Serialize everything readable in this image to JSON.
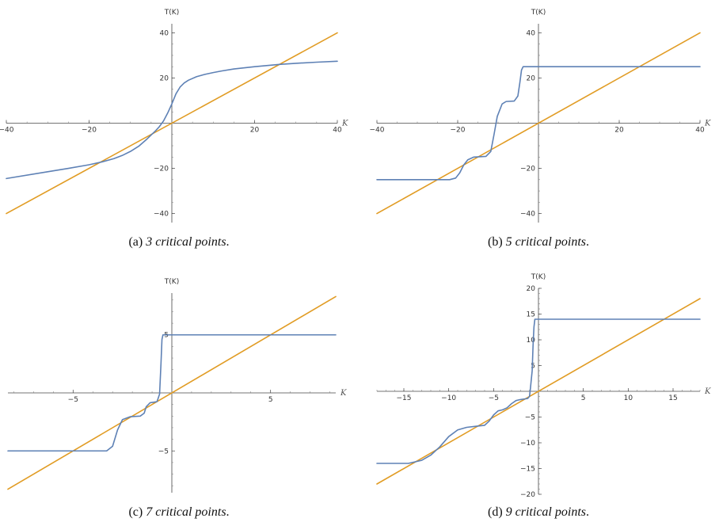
{
  "chart_data": [
    {
      "type": "line",
      "caption_label": "(a)",
      "caption_text": "3 critical points",
      "caption_end": ".",
      "xlabel": "K",
      "ylabel": "T(K)",
      "xlim": [
        -40,
        40
      ],
      "ylim": [
        -44,
        44
      ],
      "x_ticks": [
        -40,
        -20,
        20,
        40
      ],
      "y_ticks": [
        -40,
        -20,
        20,
        40
      ],
      "x_tick_labels": [
        "−40",
        "−20",
        "20",
        "40"
      ],
      "y_tick_labels": [
        "−40",
        "−20",
        "20",
        "40"
      ],
      "series": [
        {
          "color": "#5e81b5",
          "x": [
            -40,
            -30,
            -25,
            -20,
            -17,
            -14,
            -12,
            -10,
            -8,
            -6,
            -4,
            -3,
            -2,
            -1,
            0,
            1,
            2,
            3,
            4,
            6,
            8,
            10,
            12,
            15,
            20,
            26,
            30,
            35,
            40
          ],
          "y": [
            -24.5,
            -21.5,
            -20,
            -18.4,
            -17.2,
            -15.7,
            -14.3,
            -12.5,
            -10.2,
            -7,
            -3.5,
            -1.5,
            1,
            4.5,
            8.5,
            13,
            16,
            17.8,
            19,
            20.6,
            21.6,
            22.4,
            23.1,
            24,
            25,
            26,
            26.5,
            27,
            27.4
          ]
        },
        {
          "color": "#e19c24",
          "x": [
            -40,
            40
          ],
          "y": [
            -40,
            40
          ]
        }
      ]
    },
    {
      "type": "line",
      "caption_label": "(b)",
      "caption_text": "5 critical points",
      "caption_end": ".",
      "xlabel": "K",
      "ylabel": "T(K)",
      "xlim": [
        -40,
        40
      ],
      "ylim": [
        -44,
        44
      ],
      "x_ticks": [
        -40,
        -20,
        20,
        40
      ],
      "y_ticks": [
        -40,
        -20,
        20,
        40
      ],
      "x_tick_labels": [
        "−40",
        "−20",
        "20",
        "40"
      ],
      "y_tick_labels": [
        "−40",
        "−20",
        "20",
        "40"
      ],
      "series": [
        {
          "color": "#5e81b5",
          "x": [
            -40,
            -22,
            -20.5,
            -19.5,
            -18.5,
            -17.5,
            -16,
            -13,
            -11.8,
            -11,
            -10.2,
            -9,
            -8,
            -6,
            -5.1,
            -4.6,
            -4.2,
            -3.8,
            40
          ],
          "y": [
            -25,
            -25,
            -24.3,
            -22,
            -18.5,
            -16.2,
            -15,
            -14.7,
            -12.5,
            -5,
            3,
            8.5,
            9.6,
            9.8,
            12,
            18,
            23.5,
            25,
            25
          ]
        },
        {
          "color": "#e19c24",
          "x": [
            -40,
            40
          ],
          "y": [
            -40,
            40
          ]
        }
      ]
    },
    {
      "type": "line",
      "caption_label": "(c)",
      "caption_text": "7 critical points",
      "caption_end": ".",
      "xlabel": "K",
      "ylabel": "T(K)",
      "xlim": [
        -8.3,
        8.3
      ],
      "ylim": [
        -8.6,
        8.6
      ],
      "x_ticks": [
        -5,
        5
      ],
      "y_ticks": [
        -5,
        5
      ],
      "x_tick_labels": [
        "−5",
        "5"
      ],
      "y_tick_labels": [
        "−5",
        "5"
      ],
      "series": [
        {
          "color": "#5e81b5",
          "x": [
            -8.3,
            -3.3,
            -3.0,
            -2.75,
            -2.5,
            -2.1,
            -1.6,
            -1.4,
            -1.3,
            -1.1,
            -0.9,
            -0.75,
            -0.62,
            -0.55,
            -0.5,
            -0.45,
            8.3
          ],
          "y": [
            -5,
            -5,
            -4.6,
            -3.2,
            -2.3,
            -2.05,
            -2.0,
            -1.75,
            -1.2,
            -0.85,
            -0.8,
            -0.75,
            -0.1,
            2.5,
            4.6,
            5,
            5
          ]
        },
        {
          "color": "#e19c24",
          "x": [
            -8.3,
            8.3
          ],
          "y": [
            -8.3,
            8.3
          ]
        }
      ]
    },
    {
      "type": "line",
      "caption_label": "(d)",
      "caption_text": "9 critical points",
      "caption_end": ".",
      "xlabel": "K",
      "ylabel": "T(K)",
      "xlim": [
        -18,
        18
      ],
      "ylim": [
        -20,
        20
      ],
      "x_ticks": [
        -15,
        -10,
        -5,
        5,
        10,
        15
      ],
      "y_ticks": [
        -20,
        -15,
        -10,
        -5,
        5,
        10,
        15,
        20
      ],
      "x_tick_labels": [
        "−15",
        "−10",
        "−5",
        "5",
        "10",
        "15"
      ],
      "y_tick_labels": [
        "−20",
        "−15",
        "−10",
        "−5",
        "5",
        "10",
        "15",
        "20"
      ],
      "series": [
        {
          "color": "#5e81b5",
          "x": [
            -18,
            -14.5,
            -13,
            -12,
            -11,
            -10,
            -9,
            -8,
            -7,
            -6,
            -5.5,
            -5,
            -4.5,
            -4,
            -3.5,
            -3,
            -2.5,
            -2,
            -1.6,
            -1.2,
            -1.0,
            -0.9,
            -0.7,
            -0.6,
            -0.5,
            -0.4,
            18
          ],
          "y": [
            -14,
            -14,
            -13.4,
            -12.4,
            -10.8,
            -8.8,
            -7.5,
            -7.0,
            -6.8,
            -6.6,
            -5.8,
            -4.6,
            -3.8,
            -3.6,
            -3.2,
            -2.4,
            -1.8,
            -1.6,
            -1.5,
            -1.4,
            -1.0,
            0.5,
            4,
            9,
            12.5,
            14,
            14
          ]
        },
        {
          "color": "#e19c24",
          "x": [
            -18,
            18
          ],
          "y": [
            -18,
            18
          ]
        }
      ]
    }
  ]
}
